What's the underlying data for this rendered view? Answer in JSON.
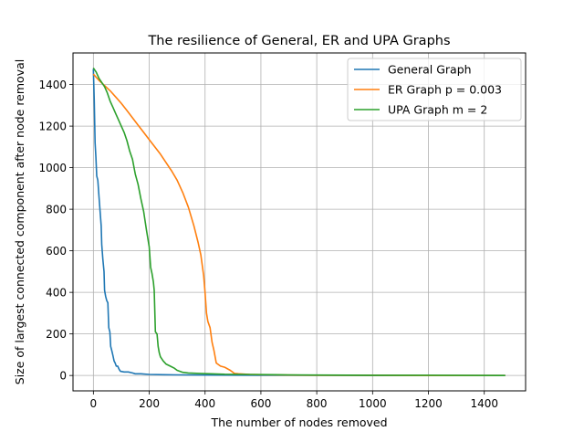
{
  "chart_data": {
    "type": "line",
    "title": "The resilience of General, ER and UPA Graphs",
    "xlabel": "The number of nodes removed",
    "ylabel": "Size of largest connected component after node removal",
    "xlim": [
      -73,
      1548
    ],
    "ylim": [
      -74,
      1552
    ],
    "xticks": [
      0,
      200,
      400,
      600,
      800,
      1000,
      1200,
      1400
    ],
    "yticks": [
      0,
      200,
      400,
      600,
      800,
      1000,
      1200,
      1400
    ],
    "x_tick_labels": [
      "0",
      "200",
      "400",
      "600",
      "800",
      "1000",
      "1200",
      "1400"
    ],
    "y_tick_labels": [
      "0",
      "200",
      "400",
      "600",
      "800",
      "1000",
      "1200",
      "1400"
    ],
    "grid": true,
    "legend_position": "top-right",
    "series": [
      {
        "name": "General Graph",
        "color": "#1f77b4",
        "points": [
          [
            0,
            1475
          ],
          [
            3,
            1320
          ],
          [
            6,
            1120
          ],
          [
            9,
            1050
          ],
          [
            12,
            960
          ],
          [
            16,
            940
          ],
          [
            20,
            860
          ],
          [
            24,
            790
          ],
          [
            28,
            720
          ],
          [
            30,
            630
          ],
          [
            34,
            560
          ],
          [
            38,
            500
          ],
          [
            40,
            410
          ],
          [
            44,
            380
          ],
          [
            48,
            360
          ],
          [
            52,
            350
          ],
          [
            55,
            230
          ],
          [
            59,
            210
          ],
          [
            62,
            140
          ],
          [
            66,
            120
          ],
          [
            70,
            95
          ],
          [
            74,
            70
          ],
          [
            78,
            60
          ],
          [
            82,
            45
          ],
          [
            87,
            45
          ],
          [
            92,
            30
          ],
          [
            97,
            20
          ],
          [
            110,
            17
          ],
          [
            125,
            17
          ],
          [
            140,
            12
          ],
          [
            150,
            8
          ],
          [
            170,
            8
          ],
          [
            200,
            5
          ],
          [
            250,
            4
          ],
          [
            300,
            3
          ],
          [
            400,
            2
          ],
          [
            600,
            1
          ],
          [
            800,
            1
          ],
          [
            1000,
            0
          ],
          [
            1200,
            0
          ],
          [
            1475,
            0
          ]
        ]
      },
      {
        "name": "ER Graph p = 0.003",
        "color": "#ff7f0e",
        "points": [
          [
            0,
            1450
          ],
          [
            20,
            1420
          ],
          [
            40,
            1395
          ],
          [
            60,
            1370
          ],
          [
            80,
            1340
          ],
          [
            100,
            1310
          ],
          [
            120,
            1275
          ],
          [
            140,
            1240
          ],
          [
            160,
            1205
          ],
          [
            180,
            1170
          ],
          [
            200,
            1135
          ],
          [
            220,
            1100
          ],
          [
            240,
            1065
          ],
          [
            260,
            1025
          ],
          [
            280,
            985
          ],
          [
            300,
            940
          ],
          [
            320,
            880
          ],
          [
            340,
            810
          ],
          [
            360,
            720
          ],
          [
            375,
            640
          ],
          [
            385,
            580
          ],
          [
            395,
            480
          ],
          [
            400,
            400
          ],
          [
            405,
            300
          ],
          [
            410,
            260
          ],
          [
            418,
            230
          ],
          [
            425,
            160
          ],
          [
            432,
            120
          ],
          [
            440,
            60
          ],
          [
            455,
            45
          ],
          [
            470,
            40
          ],
          [
            490,
            25
          ],
          [
            505,
            10
          ],
          [
            520,
            8
          ],
          [
            560,
            5
          ],
          [
            600,
            4
          ],
          [
            650,
            3
          ],
          [
            700,
            2
          ],
          [
            800,
            1
          ],
          [
            1000,
            1
          ],
          [
            1200,
            0
          ],
          [
            1475,
            0
          ]
        ]
      },
      {
        "name": "UPA Graph m = 2",
        "color": "#2ca02c",
        "points": [
          [
            0,
            1480
          ],
          [
            10,
            1460
          ],
          [
            20,
            1430
          ],
          [
            30,
            1410
          ],
          [
            40,
            1390
          ],
          [
            50,
            1360
          ],
          [
            60,
            1320
          ],
          [
            70,
            1290
          ],
          [
            80,
            1260
          ],
          [
            90,
            1230
          ],
          [
            100,
            1200
          ],
          [
            110,
            1170
          ],
          [
            120,
            1130
          ],
          [
            130,
            1080
          ],
          [
            140,
            1040
          ],
          [
            150,
            970
          ],
          [
            160,
            920
          ],
          [
            170,
            850
          ],
          [
            180,
            790
          ],
          [
            190,
            700
          ],
          [
            200,
            620
          ],
          [
            205,
            520
          ],
          [
            210,
            490
          ],
          [
            215,
            450
          ],
          [
            218,
            410
          ],
          [
            222,
            210
          ],
          [
            228,
            200
          ],
          [
            232,
            140
          ],
          [
            236,
            110
          ],
          [
            240,
            90
          ],
          [
            250,
            70
          ],
          [
            260,
            55
          ],
          [
            275,
            45
          ],
          [
            290,
            35
          ],
          [
            300,
            25
          ],
          [
            320,
            15
          ],
          [
            340,
            12
          ],
          [
            380,
            10
          ],
          [
            420,
            8
          ],
          [
            470,
            6
          ],
          [
            550,
            5
          ],
          [
            650,
            4
          ],
          [
            700,
            3
          ],
          [
            800,
            2
          ],
          [
            1000,
            1
          ],
          [
            1200,
            1
          ],
          [
            1475,
            0
          ]
        ]
      }
    ]
  }
}
